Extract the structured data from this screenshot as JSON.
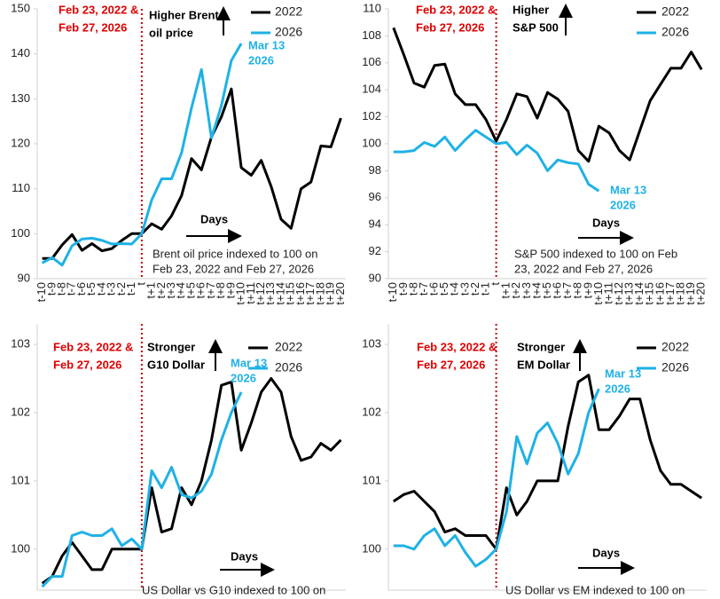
{
  "chart_data": [
    {
      "type": "line",
      "categories": [
        "t-10",
        "t-9",
        "t-8",
        "t-7",
        "t-6",
        "t-5",
        "t-4",
        "t-3",
        "t-2",
        "t-1",
        "t",
        "t+1",
        "t+2",
        "t+3",
        "t+4",
        "t+5",
        "t+6",
        "t+7",
        "t+8",
        "t+9",
        "t+10",
        "t+11",
        "t+12",
        "t+13",
        "t+14",
        "t+15",
        "t+16",
        "t+17",
        "t+18",
        "t+19",
        "t+20"
      ],
      "series": [
        {
          "name": "2022",
          "color": "#000000",
          "values": [
            94.5,
            94.5,
            97.5,
            99.8,
            96.3,
            97.8,
            96.2,
            96.7,
            98.5,
            100,
            100,
            102.2,
            101,
            104,
            108.5,
            116.7,
            114.2,
            121.5,
            126,
            132.2,
            114.7,
            113,
            116.3,
            110.5,
            103.2,
            101.2,
            110,
            111.5,
            119.5,
            119.3,
            125.7
          ]
        },
        {
          "name": "2026",
          "color": "#1fb1e6",
          "values": [
            93.5,
            94.7,
            93,
            97.3,
            98.8,
            99,
            98.5,
            97.7,
            97.8,
            97.7,
            100,
            107.5,
            112.2,
            112.2,
            118,
            128,
            136.5,
            121.3,
            128.5,
            138.5,
            142.3,
            null,
            null,
            null,
            null,
            null,
            null,
            null,
            null,
            null,
            null
          ]
        }
      ],
      "ylim": [
        90,
        150
      ],
      "yticks": [
        90,
        100,
        110,
        120,
        130,
        140,
        150
      ],
      "legend": "upper right",
      "date_note": [
        "Feb 23, 2022 &",
        "Feb 27, 2026"
      ],
      "direction": [
        "Higher Brent",
        "oil price"
      ],
      "end_label": [
        "Mar 13",
        "2026"
      ],
      "days_label": "Days",
      "footnote": [
        "Brent oil price indexed to 100 on",
        "Feb 23, 2022 and Feb 27, 2026"
      ]
    },
    {
      "type": "line",
      "categories": [
        "t-10",
        "t-9",
        "t-8",
        "t-7",
        "t-6",
        "t-5",
        "t-4",
        "t-3",
        "t-2",
        "t-1",
        "t",
        "t+1",
        "t+2",
        "t+3",
        "t+4",
        "t+5",
        "t+6",
        "t+7",
        "t+8",
        "t+9",
        "t+10",
        "t+11",
        "t+12",
        "t+13",
        "t+14",
        "t+15",
        "t+16",
        "t+17",
        "t+18",
        "t+19",
        "t+20"
      ],
      "series": [
        {
          "name": "2022",
          "color": "#000000",
          "values": [
            108.6,
            106.6,
            104.5,
            104.2,
            105.8,
            105.9,
            103.7,
            102.9,
            102.9,
            101.8,
            100.2,
            101.8,
            103.7,
            103.5,
            101.9,
            103.8,
            103.3,
            102.4,
            99.5,
            98.7,
            101.3,
            100.8,
            99.5,
            98.8,
            101,
            103.2,
            104.4,
            105.6,
            105.6,
            106.8,
            105.5
          ]
        },
        {
          "name": "2026",
          "color": "#1fb1e6",
          "values": [
            99.4,
            99.4,
            99.5,
            100.1,
            99.8,
            100.5,
            99.5,
            100.3,
            101,
            100.5,
            100,
            100.1,
            99.2,
            99.9,
            99.3,
            98,
            98.8,
            98.6,
            98.5,
            97,
            96.5,
            null,
            null,
            null,
            null,
            null,
            null,
            null,
            null,
            null,
            null
          ]
        }
      ],
      "ylim": [
        90,
        110
      ],
      "yticks": [
        90,
        92,
        94,
        96,
        98,
        100,
        102,
        104,
        106,
        108,
        110
      ],
      "legend": "upper right",
      "date_note": [
        "Feb 23, 2022 &",
        "Feb 27, 2026"
      ],
      "direction": [
        "Higher",
        "S&P 500"
      ],
      "end_label": [
        "Mar 13",
        "2026"
      ],
      "days_label": "Days",
      "footnote": [
        "S&P 500 indexed to 100 on Feb",
        "23, 2022 and Feb 27, 2026"
      ]
    },
    {
      "type": "line",
      "categories": [
        null,
        null,
        null,
        null,
        null,
        null,
        null,
        null,
        null,
        null,
        null,
        null,
        null,
        null,
        null,
        null,
        null,
        null,
        null,
        null,
        null,
        null,
        null,
        null,
        null,
        null,
        null,
        null,
        null,
        null,
        null
      ],
      "series": [
        {
          "name": "2022",
          "color": "#000000",
          "values": [
            99.5,
            99.6,
            99.9,
            100.1,
            99.9,
            99.7,
            99.7,
            100,
            100,
            100,
            100,
            100.9,
            100.25,
            100.3,
            100.9,
            100.65,
            101,
            101.6,
            102.4,
            102.45,
            101.45,
            101.85,
            102.3,
            102.5,
            102.3,
            101.65,
            101.3,
            101.35,
            101.55,
            101.45,
            101.6
          ]
        },
        {
          "name": "2026",
          "color": "#1fb1e6",
          "values": [
            99.45,
            99.6,
            99.6,
            100.2,
            100.25,
            100.2,
            100.2,
            100.3,
            100.05,
            100.15,
            100,
            101.15,
            100.9,
            101.2,
            100.8,
            100.75,
            100.85,
            101.1,
            101.6,
            102.0,
            102.3,
            null,
            null,
            null,
            null,
            null,
            null,
            null,
            null,
            null,
            null
          ]
        }
      ],
      "ylim": [
        99.4,
        103.3
      ],
      "yticks": [
        100,
        101,
        102,
        103
      ],
      "legend": "upper right",
      "date_note": [
        "Feb 23, 2022 &",
        "Feb 27, 2026"
      ],
      "direction": [
        "Stronger",
        "G10 Dollar"
      ],
      "end_label": [
        "Mar 13",
        "2026"
      ],
      "days_label": "Days",
      "footnote": [
        "US Dollar vs G10 indexed to 100 on"
      ]
    },
    {
      "type": "line",
      "categories": [
        null,
        null,
        null,
        null,
        null,
        null,
        null,
        null,
        null,
        null,
        null,
        null,
        null,
        null,
        null,
        null,
        null,
        null,
        null,
        null,
        null,
        null,
        null,
        null,
        null,
        null,
        null,
        null,
        null,
        null,
        null
      ],
      "series": [
        {
          "name": "2022",
          "color": "#000000",
          "values": [
            100.7,
            100.8,
            100.85,
            100.7,
            100.55,
            100.25,
            100.3,
            100.2,
            100.2,
            100.2,
            100,
            100.9,
            100.5,
            100.7,
            101,
            101,
            101,
            101.8,
            102.45,
            102.55,
            101.75,
            101.75,
            101.95,
            102.2,
            102.2,
            101.6,
            101.15,
            100.95,
            100.95,
            100.85,
            100.75
          ]
        },
        {
          "name": "2026",
          "color": "#1fb1e6",
          "values": [
            100.05,
            100.05,
            100,
            100.2,
            100.3,
            100.05,
            100.2,
            99.95,
            99.75,
            99.85,
            100,
            100.55,
            101.65,
            101.25,
            101.7,
            101.85,
            101.55,
            101.1,
            101.4,
            102,
            102.35,
            null,
            null,
            null,
            null,
            null,
            null,
            null,
            null,
            null,
            null
          ]
        }
      ],
      "ylim": [
        99.4,
        103.3
      ],
      "yticks": [
        100,
        101,
        102,
        103
      ],
      "legend": "upper right",
      "date_note": [
        "Feb 23, 2022 &",
        "Feb 27, 2026"
      ],
      "direction": [
        "Stronger",
        "EM Dollar"
      ],
      "end_label": [
        "Mar 13",
        "2026"
      ],
      "days_label": "Days",
      "footnote": [
        "US Dollar vs EM indexed to 100 on"
      ]
    }
  ]
}
